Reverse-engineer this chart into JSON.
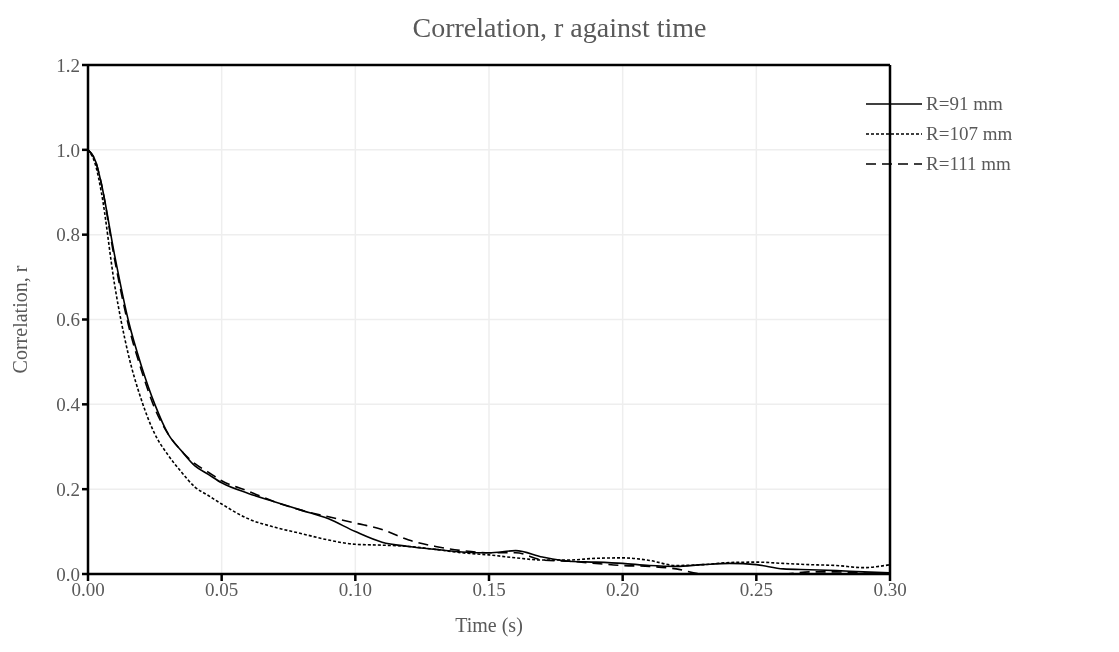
{
  "chart_data": {
    "type": "line",
    "title": "Correlation, r against time",
    "xlabel": "Time (s)",
    "ylabel": "Correlation, r",
    "x": [
      0,
      0.003,
      0.005,
      0.01,
      0.015,
      0.02,
      0.025,
      0.03,
      0.035,
      0.04,
      0.045,
      0.05,
      0.06,
      0.07,
      0.08,
      0.09,
      0.1,
      0.11,
      0.12,
      0.13,
      0.14,
      0.15,
      0.16,
      0.17,
      0.18,
      0.19,
      0.2,
      0.21,
      0.22,
      0.23,
      0.24,
      0.25,
      0.26,
      0.27,
      0.28,
      0.29,
      0.3
    ],
    "series": [
      {
        "name": "R=91 mm",
        "color": "#000000",
        "line_style": "solid",
        "values": [
          1.0,
          0.97,
          0.92,
          0.75,
          0.6,
          0.49,
          0.4,
          0.33,
          0.29,
          0.255,
          0.235,
          0.215,
          0.19,
          0.17,
          0.15,
          0.13,
          0.1,
          0.075,
          0.065,
          0.058,
          0.052,
          0.05,
          0.055,
          0.04,
          0.03,
          0.028,
          0.025,
          0.02,
          0.018,
          0.022,
          0.025,
          0.022,
          0.012,
          0.01,
          0.008,
          0.005,
          0.003
        ]
      },
      {
        "name": "R=107 mm",
        "color": "#000000",
        "line_style": "dotted",
        "values": [
          1.0,
          0.96,
          0.9,
          0.68,
          0.52,
          0.41,
          0.33,
          0.28,
          0.24,
          0.205,
          0.185,
          0.165,
          0.13,
          0.11,
          0.095,
          0.08,
          0.07,
          0.068,
          0.065,
          0.058,
          0.05,
          0.045,
          0.038,
          0.033,
          0.033,
          0.037,
          0.038,
          0.032,
          0.02,
          0.022,
          0.027,
          0.028,
          0.025,
          0.022,
          0.02,
          0.015,
          0.022
        ]
      },
      {
        "name": "R=111 mm",
        "color": "#000000",
        "line_style": "dashed",
        "values": [
          1.0,
          0.97,
          0.92,
          0.74,
          0.59,
          0.48,
          0.39,
          0.33,
          0.29,
          0.26,
          0.24,
          0.22,
          0.195,
          0.17,
          0.15,
          0.135,
          0.12,
          0.105,
          0.08,
          0.065,
          0.055,
          0.05,
          0.05,
          0.033,
          0.03,
          0.025,
          0.02,
          0.018,
          0.012,
          0.0,
          0.0,
          0.0,
          0.0,
          0.005,
          0.005,
          0.002,
          0.0
        ]
      }
    ],
    "xlim": [
      0,
      0.3
    ],
    "xticks": [
      {
        "value": 0,
        "label": "0.00"
      },
      {
        "value": 0.05,
        "label": "0.05"
      },
      {
        "value": 0.1,
        "label": "0.10"
      },
      {
        "value": 0.15,
        "label": "0.15"
      },
      {
        "value": 0.2,
        "label": "0.20"
      },
      {
        "value": 0.25,
        "label": "0.25"
      },
      {
        "value": 0.3,
        "label": "0.30"
      }
    ],
    "ylim": [
      0,
      1.2
    ],
    "yticks": [
      {
        "value": 0,
        "label": "0.0"
      },
      {
        "value": 0.2,
        "label": "0.2"
      },
      {
        "value": 0.4,
        "label": "0.4"
      },
      {
        "value": 0.6,
        "label": "0.6"
      },
      {
        "value": 0.8,
        "label": "0.8"
      },
      {
        "value": 1.0,
        "label": "1.0"
      },
      {
        "value": 1.2,
        "label": "1.2"
      }
    ],
    "grid": true,
    "legend": "top right",
    "marker": "none"
  }
}
